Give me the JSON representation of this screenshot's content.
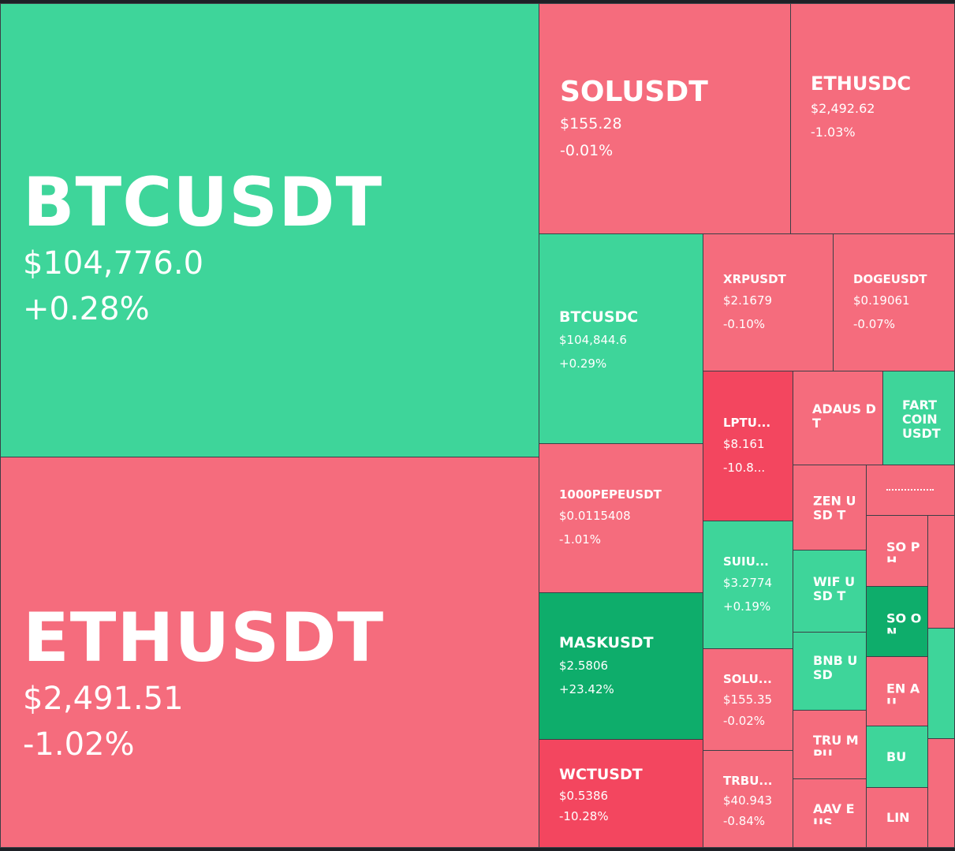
{
  "tiles": [
    {
      "symbol": "BTCUSDT",
      "price": "$104,776.0",
      "change": "+0.28%"
    },
    {
      "symbol": "ETHUSDT",
      "price": "$2,491.51",
      "change": "-1.02%"
    },
    {
      "symbol": "SOLUSDT",
      "price": "$155.28",
      "change": "-0.01%"
    },
    {
      "symbol": "ETHUSDC",
      "price": "$2,492.62",
      "change": "-1.03%"
    },
    {
      "symbol": "BTCUSDC",
      "price": "$104,844.6",
      "change": "+0.29%"
    },
    {
      "symbol": "XRPUSDT",
      "price": "$2.1679",
      "change": "-0.10%"
    },
    {
      "symbol": "DOGEUSDT",
      "price": "$0.19061",
      "change": "-0.07%"
    },
    {
      "symbol": "1000PEPEUSDT",
      "price": "$0.0115408",
      "change": "-1.01%"
    },
    {
      "symbol": "MASKUSDT",
      "price": "$2.5806",
      "change": "+23.42%"
    },
    {
      "symbol": "WCTUSDT",
      "price": "$0.5386",
      "change": "-10.28%"
    },
    {
      "symbol": "LPTU...",
      "price": "$8.161",
      "change": "-10.8..."
    },
    {
      "symbol": "SUIU...",
      "price": "$3.2774",
      "change": "+0.19%"
    },
    {
      "symbol": "SOLU...",
      "price": "$155.35",
      "change": "-0.02%"
    },
    {
      "symbol": "TRBU...",
      "price": "$40.943",
      "change": "-0.84%"
    },
    {
      "symbol": "ADAUS DT"
    },
    {
      "symbol": "FART COIN USDT"
    },
    {
      "symbol": "ZEN USD T"
    },
    {
      "symbol": "WIF USD T"
    },
    {
      "symbol": "BNB USD"
    },
    {
      "symbol": "TRU MPU"
    },
    {
      "symbol": "AAV EUS"
    },
    {
      "symbol": "SO PH"
    },
    {
      "symbol": "SO ON"
    },
    {
      "symbol": "EN AU"
    },
    {
      "symbol": "BU"
    },
    {
      "symbol": "LIN"
    }
  ]
}
